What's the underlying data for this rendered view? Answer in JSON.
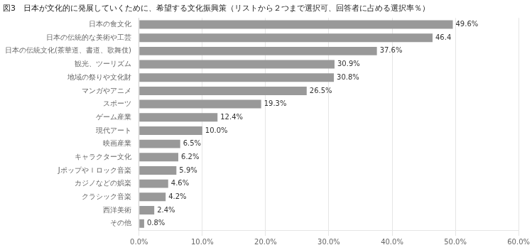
{
  "chart_data": {
    "type": "bar",
    "orientation": "horizontal",
    "title": "図3　日本が文化的に発展していくために、希望する文化振興策（リストから２つまで選択可、回答者に占める選択率％）",
    "categories": [
      "その他",
      "西洋美術",
      "クラシック音楽",
      "カジノなどの娯楽",
      "Jポップやｌロック音楽",
      "キャラクター文化",
      "映画産業",
      "現代アート",
      "ゲーム産業",
      "スポーツ",
      "マンガやアニメ",
      "地域の祭りや文化財",
      "観光、ツーリズム",
      "日本の伝統文化(茶華道、書道、歌舞伎)",
      "日本の伝統的な美術や工芸",
      "日本の食文化"
    ],
    "values": [
      0.8,
      2.4,
      4.2,
      4.6,
      5.9,
      6.2,
      6.5,
      10.0,
      12.4,
      19.3,
      26.5,
      30.8,
      30.9,
      37.6,
      46.4,
      49.6
    ],
    "value_labels": [
      "0.8%",
      "2.4%",
      "4.2%",
      "4.6%",
      "5.9%",
      "6.2%",
      "6.5%",
      "10.0%",
      "12.4%",
      "19.3%",
      "26.5%",
      "30.8%",
      "30.9%",
      "37.6%",
      "46.4",
      "49.6%"
    ],
    "data_labels": true,
    "color": "#999999",
    "xlim": [
      0,
      60
    ],
    "xticks": [
      {
        "value": 0,
        "label": "0.0%"
      },
      {
        "value": 10,
        "label": "10.0%"
      },
      {
        "value": 20,
        "label": "20.0%"
      },
      {
        "value": 30,
        "label": "30.0%"
      },
      {
        "value": 40,
        "label": "40.0%"
      },
      {
        "value": 50,
        "label": "50.0%"
      },
      {
        "value": 60,
        "label": "60.0%"
      }
    ],
    "grid": true
  }
}
